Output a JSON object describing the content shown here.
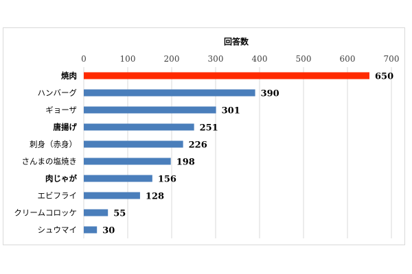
{
  "chart_data": {
    "type": "bar",
    "orientation": "horizontal",
    "title": "",
    "xlabel": "回答数",
    "ylabel": "",
    "xlim": [
      0,
      700
    ],
    "xticks": [
      0,
      100,
      200,
      300,
      400,
      500,
      600,
      700
    ],
    "xaxis_position": "top",
    "grid": true,
    "legend": "none",
    "categories": [
      "焼肉",
      "ハンバーグ",
      "ギョーザ",
      "唐揚げ",
      "刺身（赤身）",
      "さんまの塩焼き",
      "肉じゃが",
      "エビフライ",
      "クリームコロッケ",
      "シュウマイ"
    ],
    "values": [
      650,
      390,
      301,
      251,
      226,
      198,
      156,
      128,
      55,
      30
    ],
    "data_labels": [
      "650",
      "390",
      "301",
      "251",
      "226",
      "198",
      "156",
      "128",
      "55",
      "30"
    ],
    "bar_colors": [
      "#ff2a00",
      "#4a7ebb",
      "#4a7ebb",
      "#4a7ebb",
      "#4a7ebb",
      "#4a7ebb",
      "#4a7ebb",
      "#4a7ebb",
      "#4a7ebb",
      "#4a7ebb"
    ],
    "bold_categories": [
      true,
      false,
      false,
      true,
      false,
      false,
      true,
      false,
      false,
      false
    ]
  }
}
